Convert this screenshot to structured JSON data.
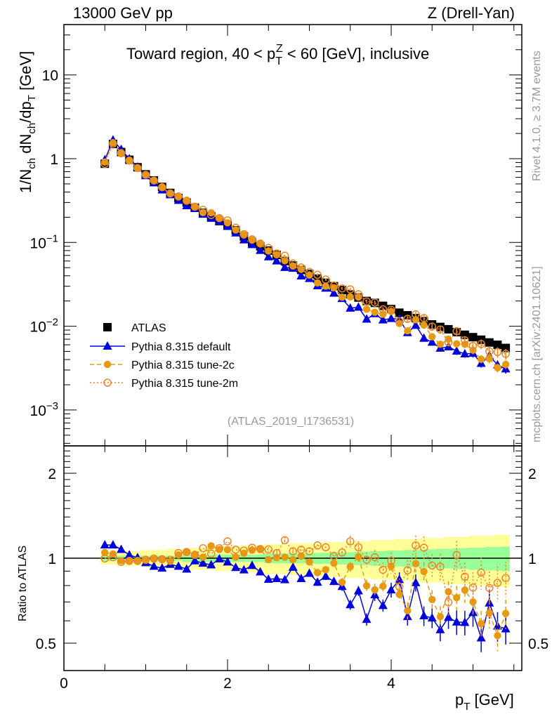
{
  "header": {
    "left": "13000 GeV pp",
    "right": "Z (Drell-Yan)"
  },
  "side": {
    "top": "Rivet 4.1.0, ≥ 3.7M events",
    "bottom": "mcplots.cern.ch [arXiv:2401.10621]"
  },
  "chart_data": {
    "type": "line",
    "title_parts": {
      "a": "Toward region, 40 < p",
      "sub": "T",
      "sup": "Z",
      "b": " < 60 [GeV], inclusive"
    },
    "ylabel_parts": {
      "a": "1/N",
      "s1": "ch",
      "b": " dN",
      "s2": "ch",
      "c": "/dp",
      "s3": "T",
      "d": " [GeV]"
    },
    "xlabel_parts": {
      "a": "p",
      "sub": "T",
      "b": " [GeV]"
    },
    "ratio_ylabel": "Ratio to ATLAS",
    "analysis_tag": "(ATLAS_2019_I1736531)",
    "xlim": [
      0,
      5.6
    ],
    "ylim": [
      0.00037,
      40
    ],
    "yscale": "log",
    "ratio_ylim": [
      0.4,
      2.5
    ],
    "x_ticks": [
      "0",
      "2",
      "4"
    ],
    "y_ticks": [
      {
        "base": "10",
        "exp": ""
      },
      {
        "base": "1",
        "exp": ""
      },
      {
        "base": "10",
        "exp": "−1"
      },
      {
        "base": "10",
        "exp": "−2"
      },
      {
        "base": "10",
        "exp": "−3"
      }
    ],
    "y_tick_values": [
      10,
      1,
      0.1,
      0.01,
      0.001
    ],
    "ratio_ticks": [
      "2",
      "1",
      "0.5"
    ],
    "ratio_tick_values": [
      2,
      1,
      0.5
    ],
    "legend_position": "center-left",
    "x": [
      0.5,
      0.6,
      0.7,
      0.8,
      0.9,
      1.0,
      1.1,
      1.2,
      1.3,
      1.4,
      1.5,
      1.6,
      1.7,
      1.8,
      1.9,
      2.0,
      2.1,
      2.2,
      2.3,
      2.4,
      2.5,
      2.6,
      2.7,
      2.8,
      2.9,
      3.0,
      3.1,
      3.2,
      3.3,
      3.4,
      3.5,
      3.6,
      3.7,
      3.8,
      3.9,
      4.0,
      4.1,
      4.2,
      4.3,
      4.4,
      4.5,
      4.6,
      4.7,
      4.8,
      4.9,
      5.0,
      5.1,
      5.2,
      5.3,
      5.4
    ],
    "atlas": [
      0.87,
      1.5,
      1.2,
      0.97,
      0.79,
      0.65,
      0.55,
      0.46,
      0.39,
      0.34,
      0.3,
      0.26,
      0.226,
      0.205,
      0.18,
      0.16,
      0.14,
      0.118,
      0.1,
      0.09,
      0.08,
      0.071,
      0.06,
      0.053,
      0.047,
      0.042,
      0.037,
      0.033,
      0.03,
      0.027,
      0.024,
      0.022,
      0.02,
      0.019,
      0.0175,
      0.016,
      0.0145,
      0.0135,
      0.0125,
      0.0115,
      0.0105,
      0.0098,
      0.0092,
      0.0085,
      0.0079,
      0.0074,
      0.0069,
      0.0064,
      0.006,
      0.0055
    ],
    "atlas_total_rel_unc": [
      0.05,
      0.05,
      0.06,
      0.06,
      0.06,
      0.07,
      0.07,
      0.07,
      0.08,
      0.08,
      0.08,
      0.09,
      0.09,
      0.09,
      0.1,
      0.1,
      0.1,
      0.11,
      0.11,
      0.11,
      0.12,
      0.12,
      0.12,
      0.13,
      0.13,
      0.13,
      0.13,
      0.14,
      0.14,
      0.14,
      0.15,
      0.15,
      0.15,
      0.16,
      0.16,
      0.16,
      0.17,
      0.17,
      0.17,
      0.18,
      0.18,
      0.18,
      0.19,
      0.19,
      0.19,
      0.2,
      0.2,
      0.2,
      0.21,
      0.21
    ],
    "atlas_stat_rel_unc": [
      0.02,
      0.02,
      0.02,
      0.02,
      0.02,
      0.02,
      0.02,
      0.02,
      0.02,
      0.02,
      0.03,
      0.03,
      0.03,
      0.03,
      0.03,
      0.03,
      0.03,
      0.03,
      0.03,
      0.03,
      0.04,
      0.04,
      0.04,
      0.04,
      0.04,
      0.04,
      0.045,
      0.045,
      0.05,
      0.05,
      0.05,
      0.055,
      0.055,
      0.06,
      0.06,
      0.065,
      0.065,
      0.07,
      0.07,
      0.075,
      0.075,
      0.08,
      0.08,
      0.085,
      0.085,
      0.09,
      0.09,
      0.095,
      0.095,
      0.1
    ],
    "mc_rel_err": [
      0.005,
      0.005,
      0.005,
      0.005,
      0.005,
      0.005,
      0.005,
      0.005,
      0.005,
      0.005,
      0.01,
      0.01,
      0.01,
      0.01,
      0.01,
      0.01,
      0.01,
      0.01,
      0.015,
      0.015,
      0.015,
      0.02,
      0.02,
      0.02,
      0.025,
      0.025,
      0.03,
      0.03,
      0.03,
      0.035,
      0.04,
      0.04,
      0.05,
      0.05,
      0.05,
      0.06,
      0.06,
      0.07,
      0.07,
      0.08,
      0.08,
      0.09,
      0.09,
      0.1,
      0.1,
      0.11,
      0.11,
      0.12,
      0.12,
      0.12
    ],
    "series": [
      {
        "name": "Pythia 8.315 default",
        "color": "#0000dd",
        "marker": "triangle",
        "line": "solid",
        "ratio": [
          1.114,
          1.114,
          1.074,
          1.027,
          1.004,
          0.964,
          0.936,
          0.922,
          0.951,
          0.936,
          0.915,
          0.979,
          0.96,
          0.947,
          0.994,
          0.97,
          0.927,
          0.909,
          0.942,
          0.894,
          0.842,
          0.847,
          0.839,
          0.929,
          0.847,
          0.884,
          0.822,
          0.863,
          0.827,
          0.794,
          0.684,
          0.766,
          0.607,
          0.742,
          0.68,
          0.772,
          0.84,
          0.621,
          0.819,
          0.625,
          0.614,
          0.558,
          0.617,
          0.594,
          0.592,
          0.642,
          0.522,
          0.694,
          0.575,
          0.562
        ]
      },
      {
        "name": "Pythia 8.315 tune-2c",
        "color": "#e69a12",
        "marker": "circle",
        "line": "dashed",
        "ratio": [
          1.047,
          1.035,
          0.979,
          0.975,
          0.975,
          0.983,
          0.992,
          0.994,
          0.975,
          1.027,
          1.052,
          1.033,
          1.008,
          1.106,
          1.074,
          1.072,
          1.008,
          1.041,
          1.068,
          1.078,
          0.988,
          1.004,
          1.008,
          0.988,
          1.018,
          0.97,
          0.889,
          0.911,
          0.96,
          0.822,
          0.933,
          1.012,
          0.799,
          0.773,
          0.796,
          0.936,
          0.744,
          0.652,
          0.956,
          0.897,
          0.714,
          0.621,
          0.761,
          0.725,
          0.771,
          0.7,
          0.586,
          0.64,
          0.532,
          0.637
        ]
      },
      {
        "name": "Pythia 8.315 tune-2m",
        "color": "#e8862a",
        "marker": "open-circle",
        "line": "dotted",
        "ratio": [
          0.998,
          1.008,
          0.97,
          0.979,
          0.979,
          0.988,
          0.998,
          0.992,
          0.988,
          1.043,
          1.052,
          1.027,
          1.085,
          1.037,
          1.085,
          1.147,
          1.072,
          1.064,
          1.089,
          1.078,
          1.074,
          1.043,
          1.158,
          1.058,
          1.072,
          1.058,
          1.11,
          1.093,
          1.018,
          1.047,
          1.147,
          1.093,
          0.988,
          1.008,
          0.91,
          0.979,
          0.791,
          0.906,
          1.11,
          1.089,
          0.942,
          0.933,
          0.698,
          1.027,
          0.86,
          0.787,
          0.889,
          0.784,
          0.818,
          0.85
        ]
      }
    ],
    "legend": [
      "ATLAS",
      "Pythia 8.315 default",
      "Pythia 8.315 tune-2c",
      "Pythia 8.315 tune-2m"
    ],
    "colors": {
      "data": "#000000",
      "band_total": "#ffff99",
      "band_stat": "#99ff99"
    }
  }
}
